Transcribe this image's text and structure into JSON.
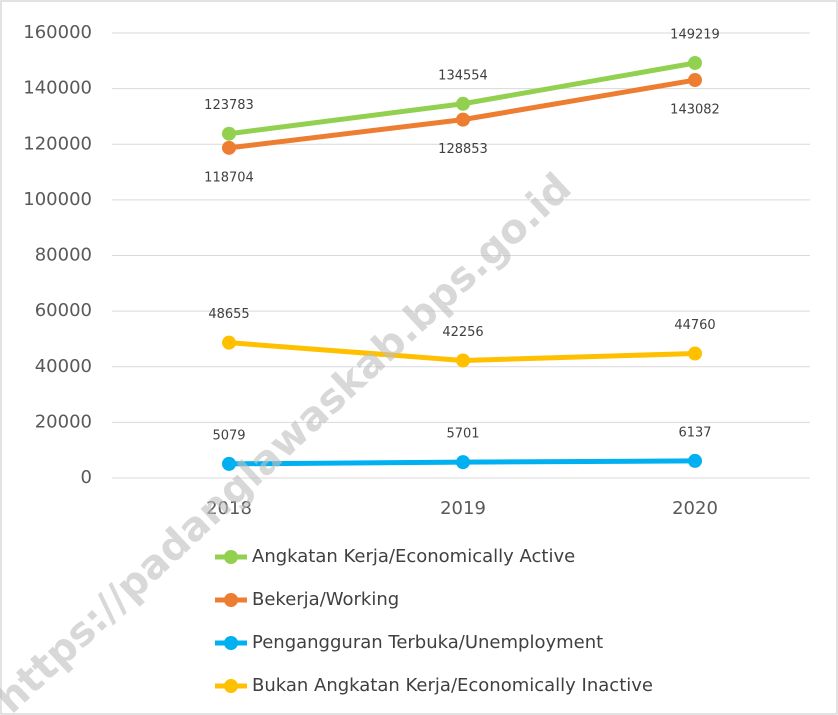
{
  "watermark": "https://padanglawaskab.bps.go.id",
  "chart_data": {
    "type": "line",
    "categories": [
      "2018",
      "2019",
      "2020"
    ],
    "series": [
      {
        "name": "Angkatan Kerja/Economically Active",
        "color": "#92d050",
        "values": [
          123783,
          134554,
          149219
        ],
        "label_pos": "above"
      },
      {
        "name": "Bekerja/Working",
        "color": "#ed7d31",
        "values": [
          118704,
          128853,
          143082
        ],
        "label_pos": "below"
      },
      {
        "name": "Pengangguran Terbuka/Unemployment",
        "color": "#00b0f0",
        "values": [
          5079,
          5701,
          6137
        ],
        "label_pos": "above"
      },
      {
        "name": "Bukan Angkatan Kerja/Economically Inactive",
        "color": "#ffc000",
        "values": [
          48655,
          42256,
          44760
        ],
        "label_pos": "above"
      }
    ],
    "ylim": [
      0,
      160000
    ],
    "yticks": [
      0,
      20000,
      40000,
      60000,
      80000,
      100000,
      120000,
      140000,
      160000
    ],
    "grid": true,
    "legend": "bottom"
  }
}
